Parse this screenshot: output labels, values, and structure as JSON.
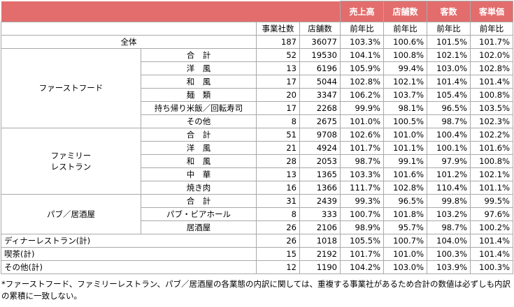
{
  "columns": {
    "companies": "事業社数",
    "stores": "店舗数",
    "yoy": "前年比"
  },
  "metrics": [
    "売上高",
    "店舗数",
    "客数",
    "客単価"
  ],
  "total": {
    "label": "全体",
    "values": [
      "187",
      "36077",
      "103.3%",
      "100.6%",
      "101.5%",
      "101.7%"
    ]
  },
  "groups": [
    {
      "label": "ファーストフード",
      "rows": [
        {
          "label": "合　計",
          "values": [
            "52",
            "19530",
            "104.1%",
            "100.8%",
            "102.1%",
            "102.0%"
          ]
        },
        {
          "label": "洋　風",
          "values": [
            "13",
            "6196",
            "105.9%",
            "99.4%",
            "103.0%",
            "102.8%"
          ]
        },
        {
          "label": "和　風",
          "values": [
            "17",
            "5044",
            "102.8%",
            "102.1%",
            "101.4%",
            "101.4%"
          ]
        },
        {
          "label": "麺　類",
          "values": [
            "20",
            "3347",
            "106.2%",
            "103.7%",
            "105.4%",
            "100.8%"
          ]
        },
        {
          "label": "持ち帰り米飯／回転寿司",
          "values": [
            "17",
            "2268",
            "99.9%",
            "98.1%",
            "96.5%",
            "103.5%"
          ]
        },
        {
          "label": "その他",
          "values": [
            "8",
            "2675",
            "101.0%",
            "100.5%",
            "98.7%",
            "102.3%"
          ]
        }
      ]
    },
    {
      "label_line1": "ファミリー",
      "label_line2": "レストラン",
      "rows": [
        {
          "label": "合　計",
          "values": [
            "51",
            "9708",
            "102.6%",
            "101.0%",
            "100.4%",
            "102.2%"
          ]
        },
        {
          "label": "洋　風",
          "values": [
            "21",
            "4924",
            "101.7%",
            "101.1%",
            "100.1%",
            "101.6%"
          ]
        },
        {
          "label": "和　風",
          "values": [
            "28",
            "2053",
            "98.7%",
            "99.1%",
            "97.9%",
            "100.8%"
          ]
        },
        {
          "label": "中　華",
          "values": [
            "13",
            "1365",
            "103.3%",
            "101.6%",
            "101.2%",
            "102.1%"
          ]
        },
        {
          "label": "焼き肉",
          "values": [
            "16",
            "1366",
            "111.7%",
            "102.8%",
            "110.4%",
            "101.1%"
          ]
        }
      ]
    },
    {
      "label": "パブ／居酒屋",
      "rows": [
        {
          "label": "合　計",
          "values": [
            "31",
            "2439",
            "99.3%",
            "96.5%",
            "99.8%",
            "99.5%"
          ]
        },
        {
          "label": "パブ・ビアホール",
          "values": [
            "8",
            "333",
            "100.7%",
            "101.8%",
            "103.2%",
            "97.6%"
          ]
        },
        {
          "label": "居酒屋",
          "values": [
            "26",
            "2106",
            "98.9%",
            "95.7%",
            "98.7%",
            "100.2%"
          ]
        }
      ]
    }
  ],
  "others": [
    {
      "label": "ディナーレストラン(計)",
      "values": [
        "26",
        "1018",
        "105.5%",
        "100.7%",
        "104.0%",
        "101.4%"
      ]
    },
    {
      "label": "喫茶(計)",
      "values": [
        "15",
        "2192",
        "101.7%",
        "101.0%",
        "100.3%",
        "101.4%"
      ]
    },
    {
      "label": "その他(計)",
      "values": [
        "12",
        "1190",
        "104.2%",
        "103.0%",
        "103.9%",
        "100.3%"
      ]
    }
  ],
  "note": "*ファーストフード、ファミリーレストラン、パブ／居酒屋の各業態の内訳に関しては、重複する事業社があるため合計の数値は必ずしも内訳の累積に一致しない。",
  "colors": {
    "header_bg": "#e36d6d",
    "header_text": "#ffffff",
    "border": "#a9a9a9"
  }
}
